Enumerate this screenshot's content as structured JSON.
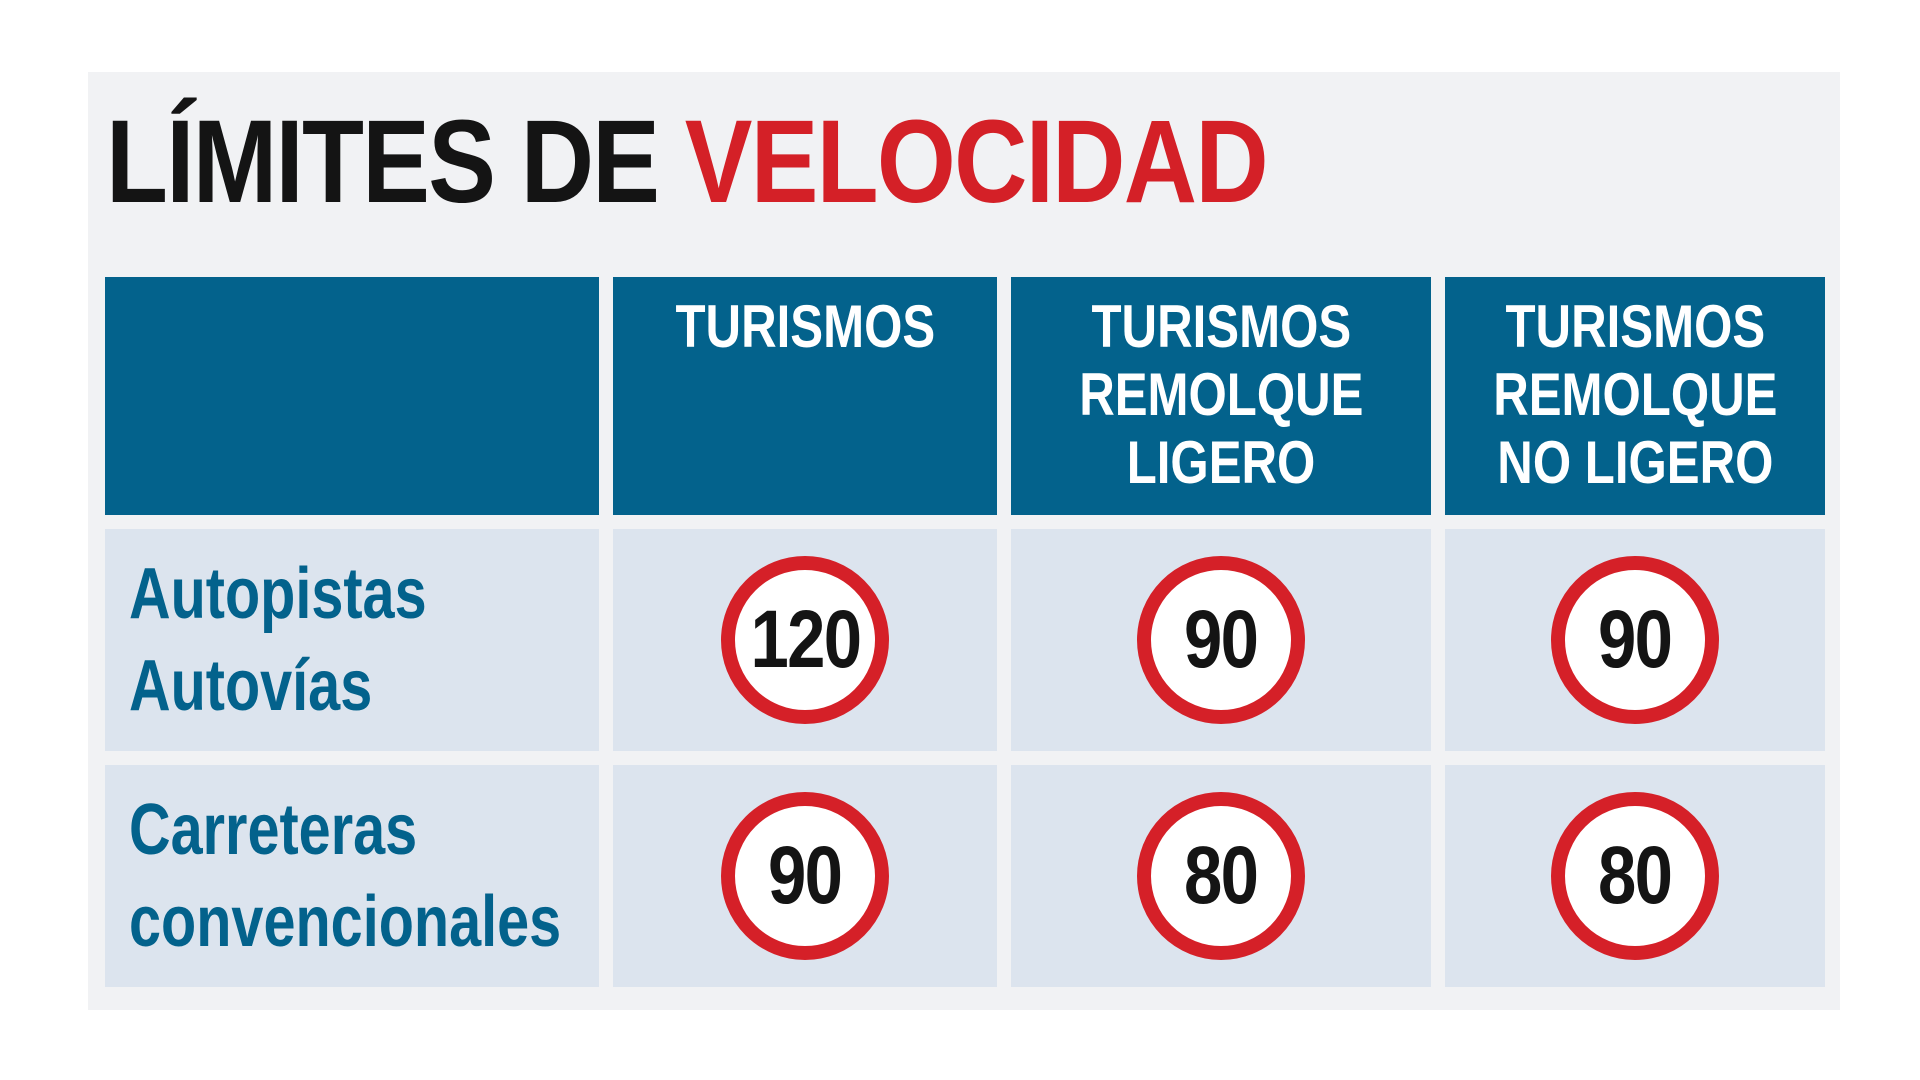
{
  "title": {
    "part1": "LÍMITES DE",
    "part2": "VELOCIDAD"
  },
  "table": {
    "headers": [
      {
        "lines": []
      },
      {
        "lines": [
          "TURISMOS"
        ]
      },
      {
        "lines": [
          "TURISMOS",
          "REMOLQUE",
          "LIGERO"
        ]
      },
      {
        "lines": [
          "TURISMOS",
          "REMOLQUE",
          "NO LIGERO"
        ]
      }
    ],
    "rows": [
      {
        "label_lines": [
          "Autopistas",
          "Autovías"
        ],
        "limits": [
          "120",
          "90",
          "90"
        ]
      },
      {
        "label_lines": [
          "Carreteras",
          "convencionales"
        ],
        "limits": [
          "90",
          "80",
          "80"
        ]
      }
    ]
  },
  "colors": {
    "header_bg": "#03628c",
    "accent_red": "#d42027",
    "cell_bg": "#dce4ee",
    "panel_bg": "#f1f2f4"
  }
}
